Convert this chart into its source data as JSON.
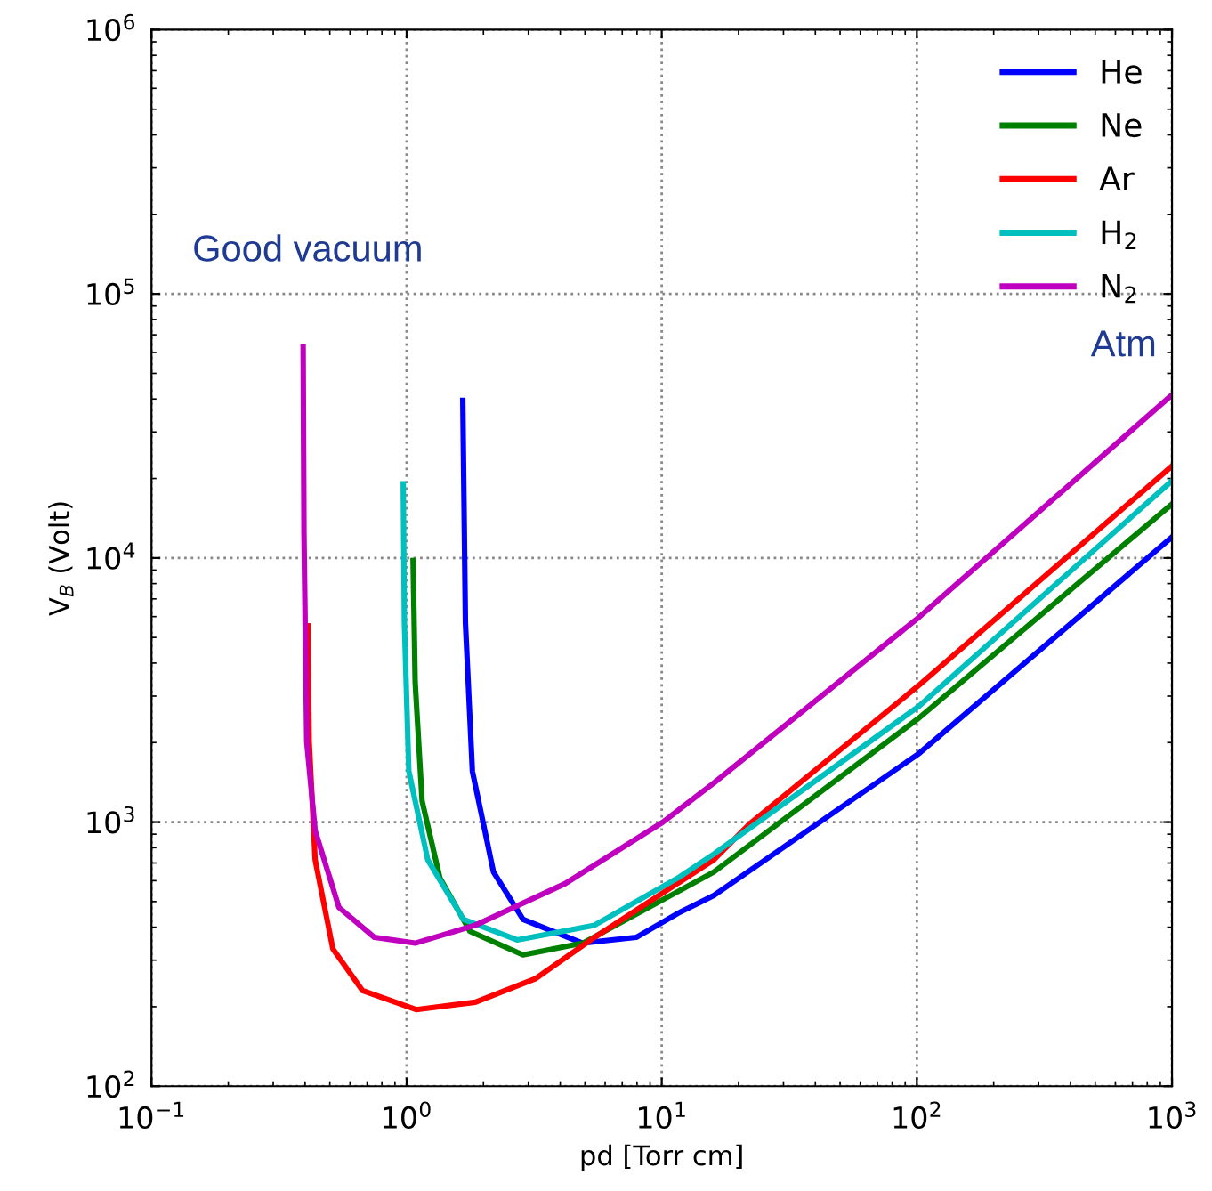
{
  "chart_data": {
    "type": "line",
    "xlabel": "pd [Torr cm]",
    "ylabel": "V$_{B}$ (Volt)",
    "log": "xy",
    "grid": true,
    "legend": "top right",
    "line_style": "solid",
    "xlim": [
      0.1,
      1000
    ],
    "ylim": [
      100,
      1000000
    ],
    "xticks": [
      {
        "value": 0.1,
        "label": "10$^{−1}$"
      },
      {
        "value": 1,
        "label": "10$^{0}$"
      },
      {
        "value": 10,
        "label": "10$^{1}$"
      },
      {
        "value": 100,
        "label": "10$^{2}$"
      },
      {
        "value": 1000,
        "label": "10$^{3}$"
      }
    ],
    "yticks": [
      {
        "value": 100,
        "label": "10$^{2}$"
      },
      {
        "value": 1000,
        "label": "10$^{3}$"
      },
      {
        "value": 10000,
        "label": "10$^{4}$"
      },
      {
        "value": 100000,
        "label": "10$^{5}$"
      },
      {
        "value": 1000000,
        "label": "10$^{6}$"
      }
    ],
    "annotations": [
      "Good vacuum",
      "Atm"
    ],
    "series": [
      {
        "name": "He",
        "color": "#0000ff",
        "x": [
          1.66,
          1.7,
          1.81,
          2.19,
          2.86,
          4.9,
          7.94,
          11.6,
          16,
          102,
          1000
        ],
        "values": [
          39500,
          5680,
          1560,
          647,
          428,
          348,
          366,
          452,
          527,
          1820,
          12000
        ]
      },
      {
        "name": "Ne",
        "color": "#008000",
        "x": [
          1.06,
          1.08,
          1.15,
          1.35,
          1.77,
          2.86,
          4.9,
          16,
          102,
          1000
        ],
        "values": [
          9780,
          3390,
          1200,
          615,
          386,
          314,
          348,
          647,
          2480,
          16000
        ]
      },
      {
        "name": "Ar",
        "color": "#ff0000",
        "x": [
          0.41,
          0.415,
          0.438,
          0.514,
          0.672,
          1.09,
          1.86,
          3.19,
          5.45,
          16,
          22,
          102,
          1000
        ],
        "values": [
          5530,
          2020,
          720,
          331,
          230,
          195,
          208,
          255,
          366,
          720,
          980,
          3300,
          22300
        ]
      },
      {
        "name": "H$_{2}$",
        "color": "#00bfbf",
        "x": [
          0.97,
          0.98,
          1.02,
          1.21,
          1.67,
          2.71,
          5.45,
          11.6,
          16,
          102,
          1000
        ],
        "values": [
          19100,
          5680,
          1560,
          720,
          428,
          358,
          407,
          615,
          757,
          2750,
          19600
        ]
      },
      {
        "name": "N$_{2}$",
        "color": "#bf00bf",
        "x": [
          0.393,
          0.396,
          0.406,
          0.438,
          0.543,
          0.748,
          1.08,
          1.86,
          4.17,
          10.1,
          16,
          102,
          1000
        ],
        "values": [
          62800,
          12300,
          2010,
          929,
          475,
          366,
          348,
          407,
          584,
          1000,
          1406,
          5970,
          41500
        ]
      }
    ]
  }
}
